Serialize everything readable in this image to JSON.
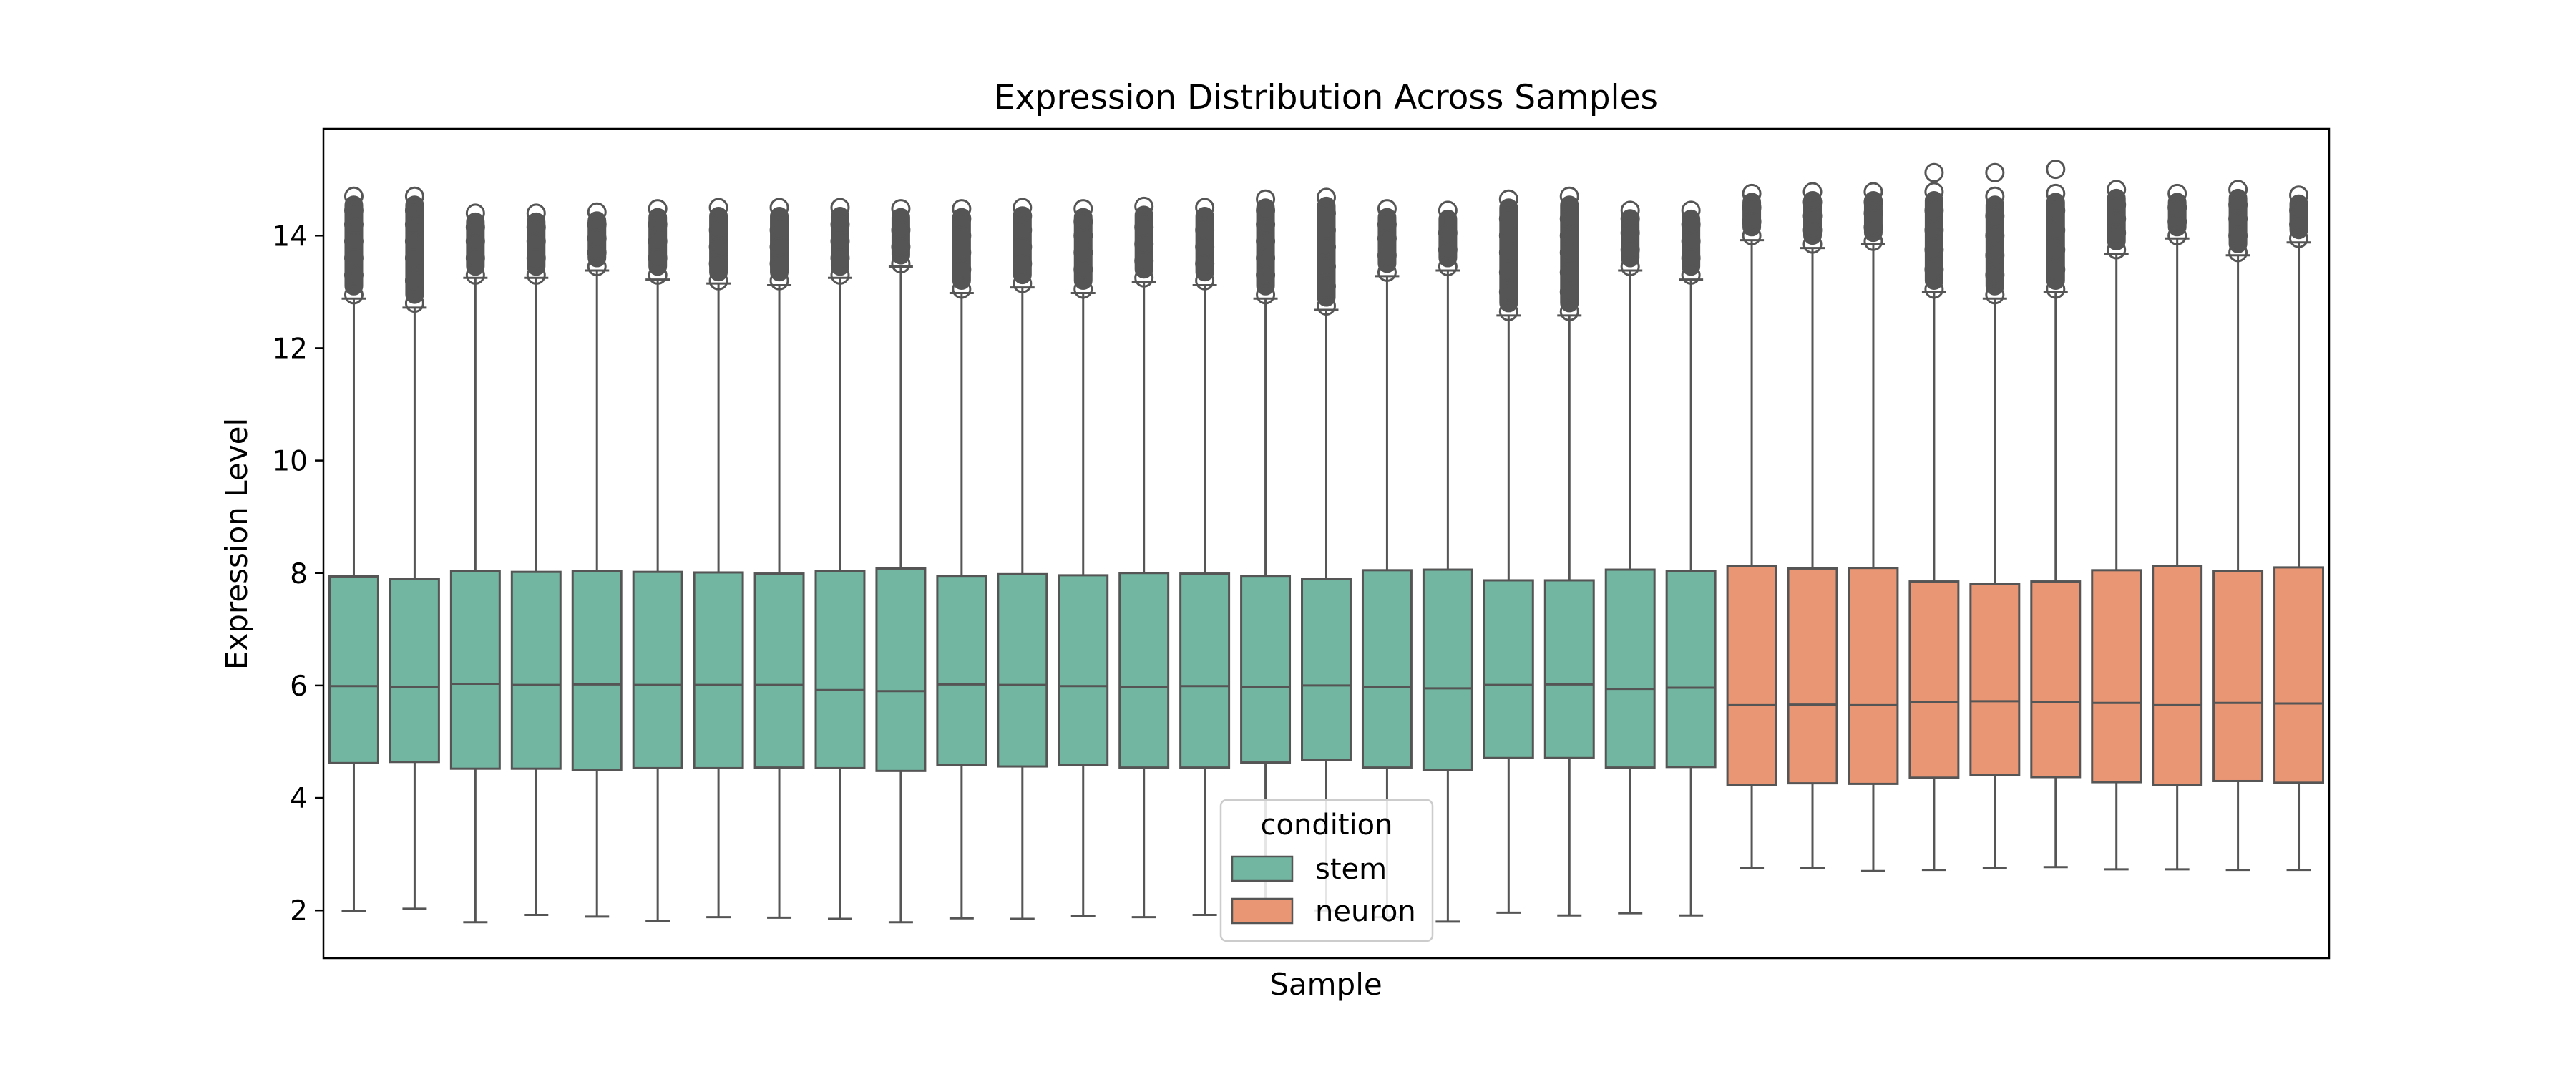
{
  "chart_data": {
    "type": "box",
    "title": "Expression Distribution Across Samples",
    "xlabel": "Sample",
    "ylabel": "Expression Level",
    "ylim": [
      1.15,
      15.9
    ],
    "yticks": [
      2,
      4,
      6,
      8,
      10,
      12,
      14
    ],
    "grid": false,
    "legend": {
      "title": "condition",
      "placement": "lower-center",
      "entries": [
        {
          "label": "stem",
          "color": "#72b6a1"
        },
        {
          "label": "neuron",
          "color": "#e99675"
        }
      ]
    },
    "series": [
      {
        "name": "stem",
        "color": "#72b6a1",
        "boxes": [
          {
            "whislo": 1.99,
            "q1": 4.62,
            "med": 5.99,
            "q3": 7.94,
            "whishi": 12.88,
            "fliers": [
              12.95,
              13.3,
              13.6,
              13.9,
              14.2,
              14.45,
              14.7
            ]
          },
          {
            "whislo": 2.03,
            "q1": 4.64,
            "med": 5.97,
            "q3": 7.89,
            "whishi": 12.72,
            "fliers": [
              12.8,
              13.2,
              13.6,
              13.9,
              14.2,
              14.45,
              14.7
            ]
          },
          {
            "whislo": 1.79,
            "q1": 4.52,
            "med": 6.03,
            "q3": 8.03,
            "whishi": 13.25,
            "fliers": [
              13.3,
              13.6,
              13.9,
              14.15,
              14.4
            ]
          },
          {
            "whislo": 1.92,
            "q1": 4.52,
            "med": 6.01,
            "q3": 8.02,
            "whishi": 13.25,
            "fliers": [
              13.3,
              13.6,
              13.9,
              14.15,
              14.4
            ]
          },
          {
            "whislo": 1.89,
            "q1": 4.5,
            "med": 6.02,
            "q3": 8.04,
            "whishi": 13.38,
            "fliers": [
              13.45,
              13.7,
              13.95,
              14.2,
              14.42
            ]
          },
          {
            "whislo": 1.81,
            "q1": 4.53,
            "med": 6.01,
            "q3": 8.02,
            "whishi": 13.22,
            "fliers": [
              13.3,
              13.6,
              13.9,
              14.2,
              14.48
            ]
          },
          {
            "whislo": 1.88,
            "q1": 4.53,
            "med": 6.01,
            "q3": 8.01,
            "whishi": 13.15,
            "fliers": [
              13.2,
              13.5,
              13.8,
              14.1,
              14.5
            ]
          },
          {
            "whislo": 1.87,
            "q1": 4.54,
            "med": 6.01,
            "q3": 7.99,
            "whishi": 13.12,
            "fliers": [
              13.2,
              13.5,
              13.8,
              14.1,
              14.5
            ]
          },
          {
            "whislo": 1.85,
            "q1": 4.53,
            "med": 5.92,
            "q3": 8.03,
            "whishi": 13.25,
            "fliers": [
              13.3,
              13.6,
              13.9,
              14.2,
              14.5
            ]
          },
          {
            "whislo": 1.79,
            "q1": 4.48,
            "med": 5.9,
            "q3": 8.08,
            "whishi": 13.45,
            "fliers": [
              13.5,
              13.8,
              14.1,
              14.48
            ]
          },
          {
            "whislo": 1.86,
            "q1": 4.58,
            "med": 6.02,
            "q3": 7.95,
            "whishi": 12.98,
            "fliers": [
              13.05,
              13.4,
              13.7,
              14.0,
              14.3,
              14.48
            ]
          },
          {
            "whislo": 1.85,
            "q1": 4.56,
            "med": 6.01,
            "q3": 7.98,
            "whishi": 13.08,
            "fliers": [
              13.15,
              13.5,
              13.8,
              14.1,
              14.35,
              14.5
            ]
          },
          {
            "whislo": 1.9,
            "q1": 4.58,
            "med": 5.99,
            "q3": 7.96,
            "whishi": 12.98,
            "fliers": [
              13.05,
              13.4,
              13.7,
              14.0,
              14.25,
              14.48
            ]
          },
          {
            "whislo": 1.88,
            "q1": 4.54,
            "med": 5.98,
            "q3": 8.0,
            "whishi": 13.18,
            "fliers": [
              13.25,
              13.55,
              13.85,
              14.15,
              14.52
            ]
          },
          {
            "whislo": 1.92,
            "q1": 4.54,
            "med": 5.99,
            "q3": 7.99,
            "whishi": 13.12,
            "fliers": [
              13.2,
              13.5,
              13.8,
              14.1,
              14.5
            ]
          },
          {
            "whislo": 1.95,
            "q1": 4.63,
            "med": 5.98,
            "q3": 7.95,
            "whishi": 12.88,
            "fliers": [
              12.95,
              13.3,
              13.6,
              13.9,
              14.2,
              14.45,
              14.65
            ]
          },
          {
            "whislo": 2.0,
            "q1": 4.68,
            "med": 6.0,
            "q3": 7.89,
            "whishi": 12.68,
            "fliers": [
              12.75,
              13.1,
              13.45,
              13.8,
              14.1,
              14.4,
              14.68
            ]
          },
          {
            "whislo": 1.88,
            "q1": 4.54,
            "med": 5.97,
            "q3": 8.05,
            "whishi": 13.28,
            "fliers": [
              13.35,
              13.65,
              13.95,
              14.2,
              14.48
            ]
          },
          {
            "whislo": 1.8,
            "q1": 4.5,
            "med": 5.95,
            "q3": 8.06,
            "whishi": 13.38,
            "fliers": [
              13.45,
              13.75,
              14.05,
              14.45
            ]
          },
          {
            "whislo": 1.96,
            "q1": 4.71,
            "med": 6.01,
            "q3": 7.87,
            "whishi": 12.58,
            "fliers": [
              12.65,
              13.0,
              13.35,
              13.7,
              14.0,
              14.3,
              14.65
            ]
          },
          {
            "whislo": 1.91,
            "q1": 4.71,
            "med": 6.02,
            "q3": 7.87,
            "whishi": 12.58,
            "fliers": [
              12.65,
              13.0,
              13.35,
              13.7,
              14.0,
              14.3,
              14.7
            ]
          },
          {
            "whislo": 1.95,
            "q1": 4.54,
            "med": 5.94,
            "q3": 8.06,
            "whishi": 13.38,
            "fliers": [
              13.45,
              13.75,
              14.05,
              14.3,
              14.45
            ]
          },
          {
            "whislo": 1.91,
            "q1": 4.55,
            "med": 5.96,
            "q3": 8.03,
            "whishi": 13.22,
            "fliers": [
              13.3,
              13.6,
              13.9,
              14.2,
              14.45
            ]
          }
        ]
      },
      {
        "name": "neuron",
        "color": "#e99675",
        "boxes": [
          {
            "whislo": 2.76,
            "q1": 4.23,
            "med": 5.65,
            "q3": 8.12,
            "whishi": 13.92,
            "fliers": [
              14.0,
              14.25,
              14.5,
              14.75
            ]
          },
          {
            "whislo": 2.75,
            "q1": 4.26,
            "med": 5.66,
            "q3": 8.08,
            "whishi": 13.78,
            "fliers": [
              13.85,
              14.1,
              14.35,
              14.6,
              14.78
            ]
          },
          {
            "whislo": 2.7,
            "q1": 4.25,
            "med": 5.65,
            "q3": 8.09,
            "whishi": 13.85,
            "fliers": [
              13.9,
              14.15,
              14.4,
              14.6,
              14.78
            ]
          },
          {
            "whislo": 2.72,
            "q1": 4.36,
            "med": 5.71,
            "q3": 7.85,
            "whishi": 13.0,
            "fliers": [
              13.05,
              13.4,
              13.75,
              14.1,
              14.45,
              14.78,
              15.12
            ]
          },
          {
            "whislo": 2.75,
            "q1": 4.41,
            "med": 5.72,
            "q3": 7.81,
            "whishi": 12.88,
            "fliers": [
              12.95,
              13.3,
              13.65,
              14.0,
              14.35,
              14.7,
              15.12
            ]
          },
          {
            "whislo": 2.77,
            "q1": 4.37,
            "med": 5.7,
            "q3": 7.85,
            "whishi": 13.0,
            "fliers": [
              13.05,
              13.4,
              13.75,
              14.1,
              14.45,
              14.75,
              15.18
            ]
          },
          {
            "whislo": 2.73,
            "q1": 4.28,
            "med": 5.69,
            "q3": 8.05,
            "whishi": 13.68,
            "fliers": [
              13.75,
              14.05,
              14.3,
              14.55,
              14.82
            ]
          },
          {
            "whislo": 2.73,
            "q1": 4.23,
            "med": 5.65,
            "q3": 8.13,
            "whishi": 13.95,
            "fliers": [
              14.0,
              14.25,
              14.5,
              14.75
            ]
          },
          {
            "whislo": 2.72,
            "q1": 4.3,
            "med": 5.69,
            "q3": 8.04,
            "whishi": 13.65,
            "fliers": [
              13.7,
              14.0,
              14.3,
              14.55,
              14.82
            ]
          },
          {
            "whislo": 2.72,
            "q1": 4.27,
            "med": 5.68,
            "q3": 8.1,
            "whishi": 13.88,
            "fliers": [
              13.95,
              14.2,
              14.45,
              14.72
            ]
          }
        ]
      }
    ]
  }
}
